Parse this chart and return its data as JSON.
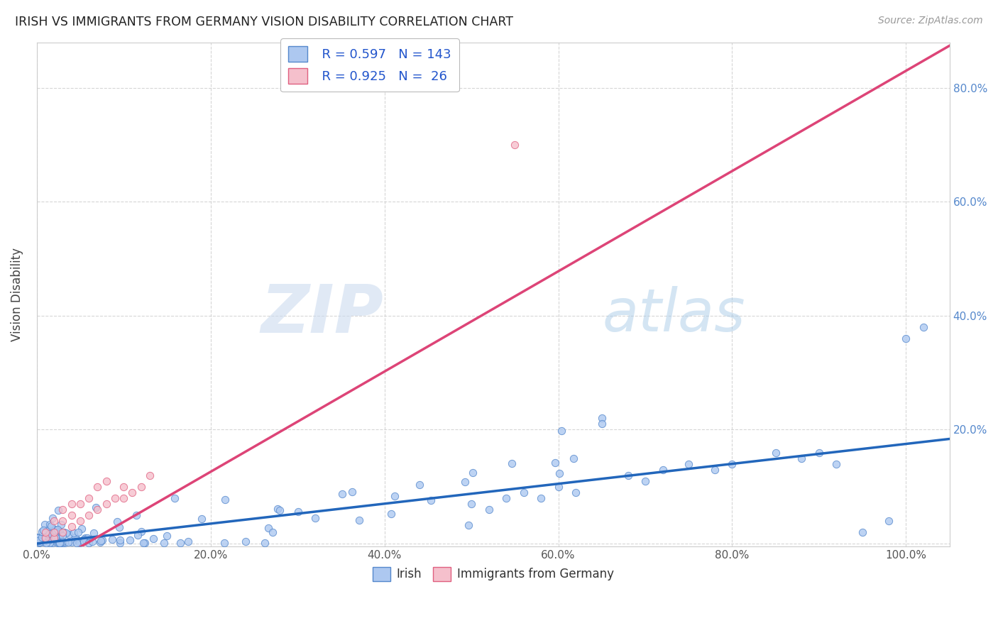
{
  "title": "IRISH VS IMMIGRANTS FROM GERMANY VISION DISABILITY CORRELATION CHART",
  "source": "Source: ZipAtlas.com",
  "ylabel": "Vision Disability",
  "watermark_zip": "ZIP",
  "watermark_atlas": "atlas",
  "x_tick_labels": [
    "0.0%",
    "20.0%",
    "40.0%",
    "60.0%",
    "80.0%",
    "100.0%"
  ],
  "y_tick_labels_right": [
    "20.0%",
    "40.0%",
    "60.0%",
    "80.0%"
  ],
  "xlim": [
    0.0,
    1.05
  ],
  "ylim": [
    -0.005,
    0.88
  ],
  "irish_fill_color": "#adc8f0",
  "irish_edge_color": "#5588cc",
  "german_fill_color": "#f5c0cc",
  "german_edge_color": "#e06080",
  "irish_line_color": "#2266bb",
  "german_line_color": "#dd4477",
  "title_color": "#222222",
  "source_color": "#999999",
  "grid_color": "#cccccc",
  "stat_color": "#2255cc",
  "tick_color": "#5588cc",
  "background_color": "#ffffff",
  "irish_r": 0.597,
  "irish_n": 143,
  "german_r": 0.925,
  "german_n": 26,
  "irish_line_intercept": 0.0,
  "irish_line_slope": 0.175,
  "german_line_intercept": -0.05,
  "german_line_slope": 0.88
}
